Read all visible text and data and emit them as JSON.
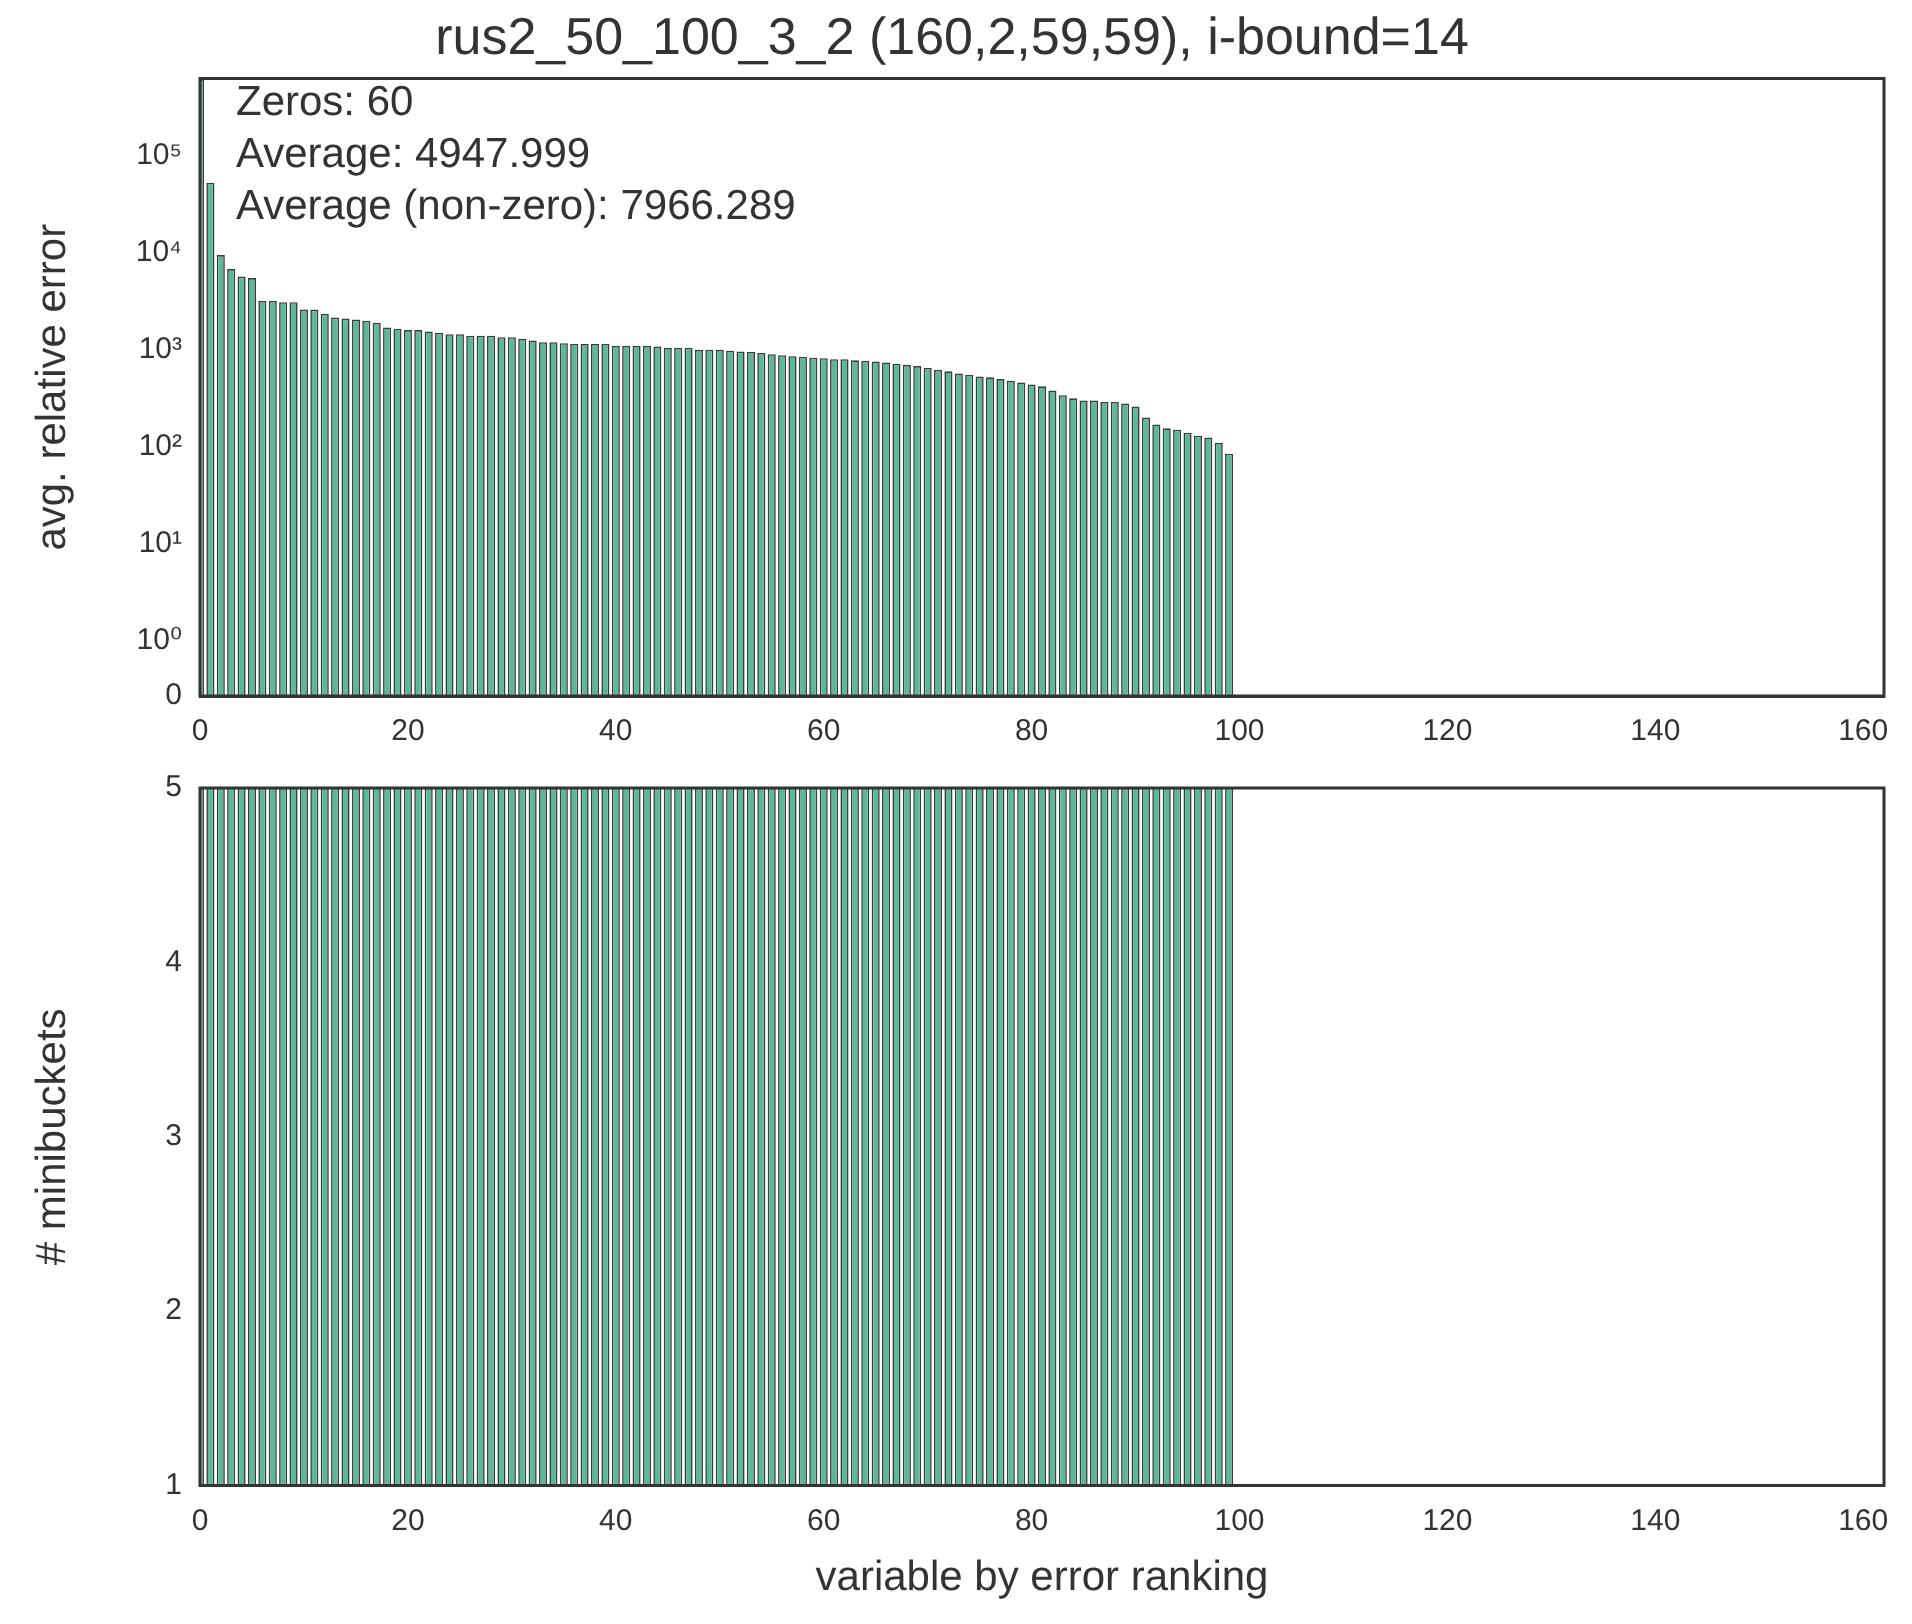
{
  "chart_data": [
    {
      "type": "bar",
      "title": "rus2_50_100_3_2 (160,2,59,59), i-bound=14",
      "ylabel": "avg. relative error",
      "log": "y",
      "color": "#5cb998",
      "annotations": [
        "Zeros: 60",
        "Average: 4947.999",
        "Average (non-zero): 7966.289"
      ],
      "x": [
        0,
        1,
        2,
        3,
        4,
        5,
        6,
        7,
        8,
        9,
        10,
        11,
        12,
        13,
        14,
        15,
        16,
        17,
        18,
        19,
        20,
        21,
        22,
        23,
        24,
        25,
        26,
        27,
        28,
        29,
        30,
        31,
        32,
        33,
        34,
        35,
        36,
        37,
        38,
        39,
        40,
        41,
        42,
        43,
        44,
        45,
        46,
        47,
        48,
        49,
        50,
        51,
        52,
        53,
        54,
        55,
        56,
        57,
        58,
        59,
        60,
        61,
        62,
        63,
        64,
        65,
        66,
        67,
        68,
        69,
        70,
        71,
        72,
        73,
        74,
        75,
        76,
        77,
        78,
        79,
        80,
        81,
        82,
        83,
        84,
        85,
        86,
        87,
        88,
        89,
        90,
        91,
        92,
        93,
        94,
        95,
        96,
        97,
        98,
        99
      ],
      "values": [
        620000,
        53000,
        9500,
        6800,
        5700,
        5500,
        3200,
        3200,
        3100,
        3100,
        2600,
        2600,
        2350,
        2150,
        2100,
        2050,
        2000,
        1900,
        1700,
        1650,
        1600,
        1600,
        1550,
        1500,
        1450,
        1450,
        1400,
        1400,
        1400,
        1350,
        1350,
        1300,
        1250,
        1200,
        1200,
        1170,
        1150,
        1150,
        1150,
        1150,
        1100,
        1100,
        1100,
        1100,
        1080,
        1050,
        1050,
        1050,
        1000,
        1000,
        1000,
        980,
        960,
        950,
        930,
        900,
        880,
        860,
        850,
        830,
        820,
        800,
        800,
        780,
        770,
        760,
        740,
        720,
        700,
        680,
        650,
        620,
        600,
        570,
        550,
        530,
        520,
        500,
        480,
        460,
        440,
        420,
        380,
        340,
        316,
        300,
        300,
        290,
        290,
        280,
        260,
        200,
        170,
        155,
        150,
        140,
        130,
        125,
        110,
        85
      ],
      "xlim": [
        0,
        162
      ],
      "xticks": [
        0,
        20,
        40,
        60,
        80,
        100,
        120,
        140,
        160
      ],
      "ylim": [
        0,
        630000
      ],
      "yticks": [
        0,
        {
          "value": 1,
          "label": "10⁰"
        },
        {
          "value": 10,
          "label": "10¹"
        },
        {
          "value": 100,
          "label": "10²"
        },
        {
          "value": 1000,
          "label": "10³"
        },
        {
          "value": 10000,
          "label": "10⁴"
        },
        {
          "value": 100000,
          "label": "10⁵"
        }
      ]
    },
    {
      "type": "bar",
      "xlabel": "variable by error ranking",
      "ylabel": "# minibuckets",
      "color": "#5cb998",
      "x": [
        0,
        1,
        2,
        3,
        4,
        5,
        6,
        7,
        8,
        9,
        10,
        11,
        12,
        13,
        14,
        15,
        16,
        17,
        18,
        19,
        20,
        21,
        22,
        23,
        24,
        25,
        26,
        27,
        28,
        29,
        30,
        31,
        32,
        33,
        34,
        35,
        36,
        37,
        38,
        39,
        40,
        41,
        42,
        43,
        44,
        45,
        46,
        47,
        48,
        49,
        50,
        51,
        52,
        53,
        54,
        55,
        56,
        57,
        58,
        59,
        60,
        61,
        62,
        63,
        64,
        65,
        66,
        67,
        68,
        69,
        70,
        71,
        72,
        73,
        74,
        75,
        76,
        77,
        78,
        79,
        80,
        81,
        82,
        83,
        84,
        85,
        86,
        87,
        88,
        89,
        90,
        91,
        92,
        93,
        94,
        95,
        96,
        97,
        98,
        99
      ],
      "values": [
        5,
        5,
        5,
        5,
        5,
        5,
        5,
        5,
        5,
        5,
        5,
        5,
        5,
        5,
        5,
        5,
        5,
        5,
        5,
        5,
        5,
        5,
        5,
        5,
        5,
        5,
        5,
        5,
        5,
        5,
        5,
        5,
        5,
        5,
        5,
        5,
        5,
        5,
        5,
        5,
        5,
        5,
        5,
        5,
        5,
        5,
        5,
        5,
        5,
        5,
        5,
        5,
        5,
        5,
        5,
        5,
        5,
        5,
        5,
        5,
        5,
        5,
        5,
        5,
        5,
        5,
        5,
        5,
        5,
        5,
        5,
        5,
        5,
        5,
        5,
        5,
        5,
        5,
        5,
        5,
        5,
        5,
        5,
        5,
        5,
        5,
        5,
        5,
        5,
        5,
        5,
        5,
        5,
        5,
        5,
        5,
        5,
        5,
        5,
        5
      ],
      "xlim": [
        0,
        162
      ],
      "xticks": [
        0,
        20,
        40,
        60,
        80,
        100,
        120,
        140,
        160
      ],
      "ylim": [
        1,
        5
      ],
      "yticks": [
        1,
        2,
        3,
        4,
        5
      ]
    }
  ]
}
